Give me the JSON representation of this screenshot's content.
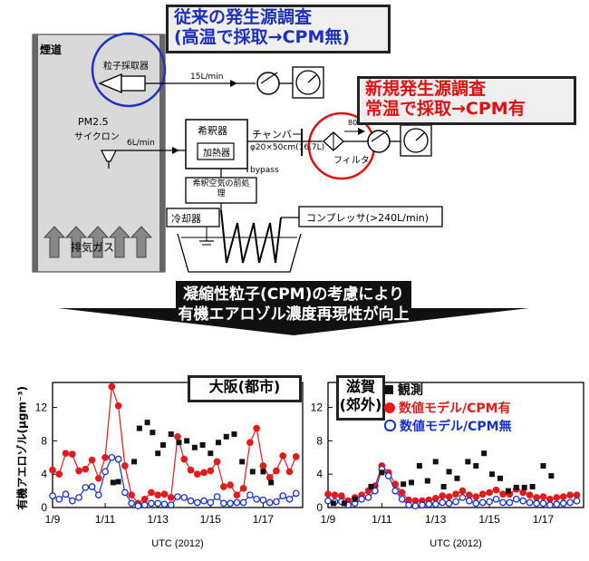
{
  "callout_old": {
    "line1": "従来の発生源調査",
    "line2": "(高温で採取→CPM無)"
  },
  "callout_new": {
    "line1": "新規発生源調査",
    "line2": "常温で採取→CPM有"
  },
  "diagram": {
    "stack_label": "煙道",
    "exhaust_label": "排気ガス",
    "sampler_label": "粒子採取器",
    "flow_15": "15L/min",
    "pm25": "PM2.5",
    "cyclone": "サイクロン",
    "flow_6": "6L/min",
    "diluter": "希釈器",
    "heater": "加熱器",
    "bypass": "bypass",
    "dilution_air": "希釈空気の前処理",
    "chamber": "チャンバー",
    "chamber_size": "φ20×50cm(16.7L)",
    "flow_80": "80L/min",
    "filter": "フィルタ",
    "cooler": "冷却器",
    "compressor": "コンプレッサ(>240L/min)"
  },
  "banner": {
    "line1": "凝縮性粒子(CPM)の考慮により",
    "line2": "有機エアロゾル濃度再現性が向上"
  },
  "colors": {
    "obs": "#111111",
    "cpm_on": "#e21b1b",
    "cpm_off": "#1730c8"
  },
  "chart_data": [
    {
      "type": "scatter",
      "title": "大阪(都市)",
      "ylabel": "有機アエロゾル(μgm⁻³)",
      "xlabel": "UTC (2012)",
      "x_ticks": [
        "1/9",
        "1/11",
        "1/13",
        "1/15",
        "1/17"
      ],
      "y_ticks": [
        "0",
        "4",
        "8",
        "12"
      ],
      "ylim": [
        0,
        15
      ],
      "xlim": [
        0,
        9.5
      ],
      "series": [
        {
          "name": "観測",
          "x": [
            2.3,
            2.5,
            3.1,
            3.3,
            3.6,
            3.8,
            4.0,
            4.2,
            4.5,
            4.8,
            5.1,
            5.4,
            5.7,
            6.0,
            6.3,
            6.6,
            6.9,
            7.2,
            7.6,
            8.0,
            8.3
          ],
          "y": [
            3.0,
            3.1,
            5.5,
            9.5,
            10.2,
            9.0,
            6.5,
            7.5,
            8.8,
            7.8,
            8.0,
            7.2,
            7.5,
            6.5,
            7.8,
            8.5,
            8.8,
            5.5,
            4.3,
            4.3,
            3.0
          ]
        },
        {
          "name": "数値モデル/CPM有",
          "x": [
            0,
            0.25,
            0.5,
            0.75,
            1.0,
            1.25,
            1.5,
            1.75,
            2.0,
            2.25,
            2.5,
            2.75,
            3.0,
            3.25,
            3.5,
            3.75,
            4.0,
            4.25,
            4.5,
            4.75,
            5.0,
            5.25,
            5.5,
            5.75,
            6.0,
            6.25,
            6.5,
            6.75,
            7.0,
            7.25,
            7.5,
            7.75,
            8.0,
            8.25,
            8.5,
            8.75,
            9.0,
            9.25
          ],
          "y": [
            4.5,
            4.0,
            6.5,
            6.4,
            4.4,
            4.6,
            5.7,
            3.5,
            6.0,
            14.5,
            12.2,
            5.0,
            1.5,
            0.5,
            1.0,
            1.8,
            1.5,
            1.6,
            1.2,
            8.5,
            5.8,
            4.5,
            4.0,
            4.2,
            4.4,
            5.5,
            2.5,
            2.7,
            1.5,
            2.3,
            7.8,
            9.5,
            5.0,
            3.6,
            4.4,
            6.2,
            4.3,
            6.1
          ]
        },
        {
          "name": "数値モデル/CPM無",
          "x": [
            0,
            0.25,
            0.5,
            0.75,
            1.0,
            1.25,
            1.5,
            1.75,
            2.0,
            2.25,
            2.5,
            2.75,
            3.0,
            3.25,
            3.5,
            3.75,
            4.0,
            4.25,
            4.5,
            4.75,
            5.0,
            5.25,
            5.5,
            5.75,
            6.0,
            6.25,
            6.5,
            6.75,
            7.0,
            7.25,
            7.5,
            7.75,
            8.0,
            8.25,
            8.5,
            8.75,
            9.0,
            9.25
          ],
          "y": [
            1.4,
            1.0,
            1.6,
            0.8,
            1.2,
            2.4,
            2.5,
            1.5,
            4.3,
            6.0,
            5.8,
            1.8,
            0.5,
            0.2,
            0.3,
            0.5,
            0.5,
            0.4,
            0.3,
            1.3,
            1.2,
            0.8,
            0.6,
            0.8,
            0.6,
            1.3,
            0.5,
            0.5,
            0.6,
            0.6,
            1.5,
            1.0,
            0.9,
            0.6,
            0.7,
            1.4,
            1.0,
            1.7
          ]
        }
      ]
    },
    {
      "type": "scatter",
      "title": "滋賀(郊外)",
      "xlabel": "UTC (2012)",
      "x_ticks": [
        "1/9",
        "1/11",
        "1/13",
        "1/15",
        "1/17"
      ],
      "y_ticks": [
        "0",
        "4",
        "8",
        "12"
      ],
      "ylim": [
        0,
        15
      ],
      "xlim": [
        0,
        9.5
      ],
      "series": [
        {
          "name": "観測",
          "x": [
            0.2,
            0.6,
            1.0,
            1.6,
            2.0,
            2.8,
            3.1,
            3.4,
            3.7,
            4.0,
            4.3,
            4.5,
            4.8,
            5.2,
            5.5,
            5.8,
            6.1,
            6.4,
            6.7,
            7.0,
            7.3,
            7.6,
            8.0,
            8.3
          ],
          "y": [
            0.5,
            0.5,
            1.0,
            2.5,
            4.2,
            2.8,
            3.0,
            5.0,
            3.2,
            5.5,
            2.5,
            4.3,
            3.5,
            5.5,
            5.0,
            6.5,
            4.0,
            3.5,
            2.0,
            2.4,
            2.4,
            2.5,
            5.0,
            3.8
          ]
        },
        {
          "name": "数値モデル/CPM有",
          "x": [
            0,
            0.25,
            0.5,
            0.75,
            1.0,
            1.25,
            1.5,
            1.75,
            2.0,
            2.25,
            2.5,
            2.75,
            3.0,
            3.25,
            3.5,
            3.75,
            4.0,
            4.25,
            4.5,
            4.75,
            5.0,
            5.25,
            5.5,
            5.75,
            6.0,
            6.25,
            6.5,
            6.75,
            7.0,
            7.25,
            7.5,
            7.75,
            8.0,
            8.25,
            8.5,
            8.75,
            9.0,
            9.25
          ],
          "y": [
            1.6,
            1.5,
            1.4,
            0.8,
            1.2,
            1.5,
            2.0,
            2.6,
            5.0,
            4.2,
            2.8,
            1.8,
            0.9,
            0.8,
            0.8,
            0.9,
            1.1,
            1.4,
            1.3,
            1.6,
            2.0,
            1.5,
            1.3,
            1.6,
            1.8,
            2.1,
            1.6,
            1.6,
            2.2,
            1.8,
            1.5,
            1.2,
            1.3,
            1.0,
            1.2,
            1.3,
            1.5,
            1.5
          ]
        },
        {
          "name": "数値モデル/CPM無",
          "x": [
            0,
            0.25,
            0.5,
            0.75,
            1.0,
            1.25,
            1.5,
            1.75,
            2.0,
            2.25,
            2.5,
            2.75,
            3.0,
            3.25,
            3.5,
            3.75,
            4.0,
            4.25,
            4.5,
            4.75,
            5.0,
            5.25,
            5.5,
            5.75,
            6.0,
            6.25,
            6.5,
            6.75,
            7.0,
            7.25,
            7.5,
            7.75,
            8.0,
            8.25,
            8.5,
            8.75,
            9.0,
            9.25
          ],
          "y": [
            0.8,
            0.7,
            0.7,
            0.3,
            0.5,
            1.0,
            1.2,
            2.0,
            4.6,
            3.8,
            2.0,
            1.0,
            0.3,
            0.2,
            0.3,
            0.4,
            0.4,
            0.6,
            0.5,
            0.7,
            1.2,
            0.8,
            0.5,
            0.6,
            0.7,
            1.0,
            0.6,
            0.6,
            1.0,
            0.8,
            0.6,
            0.5,
            0.5,
            0.3,
            0.4,
            0.5,
            0.6,
            0.8
          ]
        }
      ]
    }
  ]
}
